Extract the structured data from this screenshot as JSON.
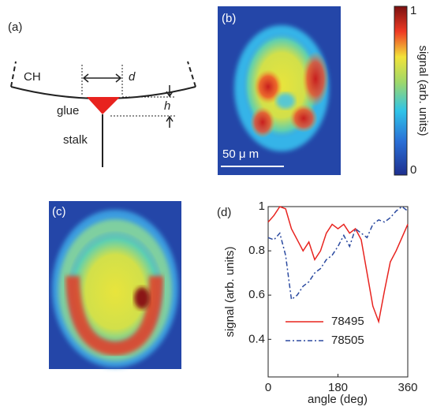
{
  "panels": {
    "a": {
      "label": "(a)",
      "ch": "CH",
      "d": "d",
      "glue": "glue",
      "h": "h",
      "stalk": "stalk"
    },
    "b": {
      "label": "(b)",
      "scale_bar": "50 μ m"
    },
    "c": {
      "label": "(c)"
    },
    "d": {
      "label": "(d)"
    }
  },
  "colorbar": {
    "label": "signal (arb. units)",
    "lim": [
      0,
      1
    ],
    "ticks": [
      0,
      1
    ]
  },
  "chart_data": {
    "type": "line",
    "xlabel": "angle (deg)",
    "ylabel": "signal (arb. units)",
    "xlim": [
      0,
      360
    ],
    "ylim": [
      0.23,
      1
    ],
    "xticks": [
      0,
      180,
      360
    ],
    "yticks": [
      0.4,
      0.6,
      0.8,
      1
    ],
    "legend": "lower left",
    "x": [
      0,
      15,
      30,
      45,
      60,
      75,
      90,
      105,
      120,
      135,
      150,
      165,
      180,
      195,
      210,
      225,
      240,
      255,
      270,
      285,
      300,
      315,
      330,
      345,
      360
    ],
    "series": [
      {
        "name": "78495",
        "color": "#e8231f",
        "style": "solid",
        "values": [
          0.93,
          0.96,
          1.0,
          0.99,
          0.9,
          0.85,
          0.8,
          0.84,
          0.76,
          0.8,
          0.88,
          0.92,
          0.9,
          0.92,
          0.88,
          0.9,
          0.85,
          0.7,
          0.55,
          0.48,
          0.62,
          0.75,
          0.8,
          0.86,
          0.92
        ]
      },
      {
        "name": "78505",
        "color": "#2b4aa0",
        "style": "dashdot",
        "values": [
          0.86,
          0.85,
          0.88,
          0.78,
          0.58,
          0.6,
          0.64,
          0.66,
          0.7,
          0.72,
          0.76,
          0.78,
          0.82,
          0.87,
          0.82,
          0.9,
          0.88,
          0.86,
          0.92,
          0.94,
          0.93,
          0.95,
          0.98,
          1.0,
          0.98
        ]
      }
    ]
  }
}
